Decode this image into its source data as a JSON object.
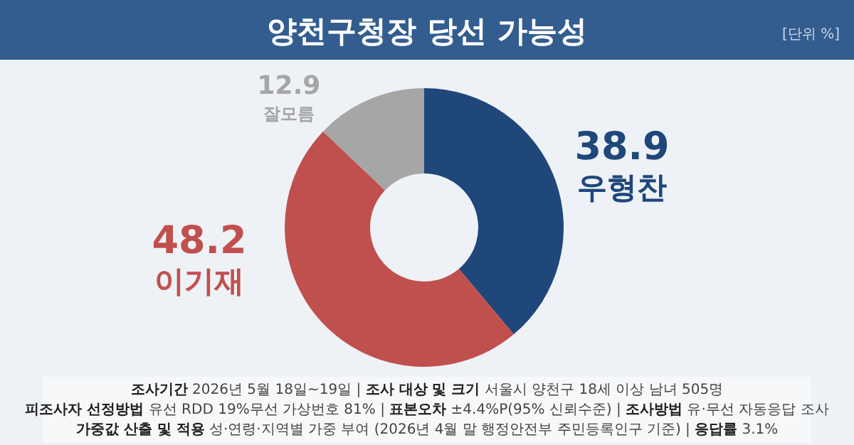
{
  "chart_data": {
    "type": "donut",
    "title": "양천구청장 당선 가능성",
    "subtitle": "[단위 %]",
    "categories": [
      "우형찬",
      "이기재",
      "잘모름"
    ],
    "values": [
      38.9,
      48.2,
      12.9
    ],
    "colors": [
      "#1f477a",
      "#c0504d",
      "#a6a6a6"
    ],
    "data_labels": true,
    "annotations": [
      "**조사기간** 2026년 5월 18일~19일 | **조사 대상 및 크기** 서울시 양천구 18세 이상 남녀 505명",
      "**피조사자 선정방법** 유선 RDD 19%무선 가상번호 81% | **표본오차** ±4.4%P(95% 신뢰수준) | **조사방법** 유·무선 자동응답 조사",
      "**가중값 산출 및 적용** 성·연령·지역별 가중 부여 (2026년 4월 말 행정안전부 주민등록인구 기준) | **응답률** 3.1%"
    ]
  }
}
